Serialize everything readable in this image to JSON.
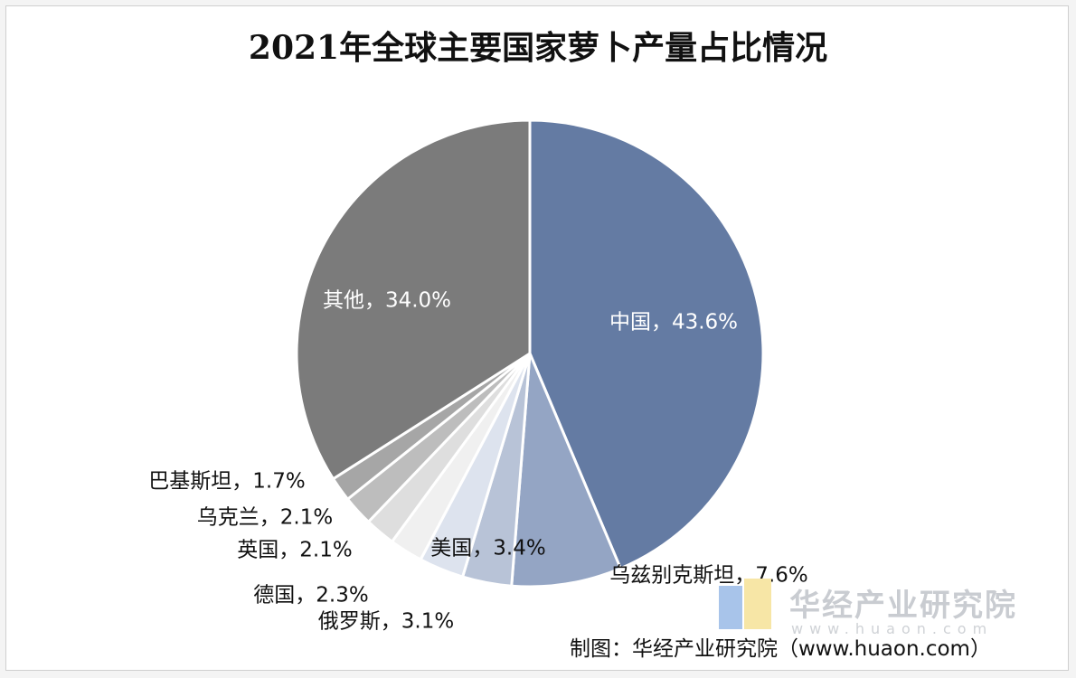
{
  "chart_data": {
    "type": "pie",
    "title": "2021年全球主要国家萝卜产量占比情况",
    "slices": [
      {
        "label": "中国，43.6%",
        "value": 43.6,
        "color": "#647ba3"
      },
      {
        "label": "乌兹别克斯坦，7.6%",
        "value": 7.6,
        "color": "#94a5c4"
      },
      {
        "label": "美国，3.4%",
        "value": 3.4,
        "color": "#b8c3d7"
      },
      {
        "label": "俄罗斯，3.1%",
        "value": 3.1,
        "color": "#dde3ee"
      },
      {
        "label": "德国，2.3%",
        "value": 2.3,
        "color": "#f0f0f0"
      },
      {
        "label": "英国，2.1%",
        "value": 2.1,
        "color": "#dedede"
      },
      {
        "label": "乌克兰，2.1%",
        "value": 2.1,
        "color": "#bdbdbd"
      },
      {
        "label": "巴基斯坦，1.7%",
        "value": 1.7,
        "color": "#a6a6a6"
      },
      {
        "label": "其他，34.0%",
        "value": 34.0,
        "color": "#7b7b7b"
      }
    ]
  },
  "watermark": {
    "name": "华经产业研究院",
    "url": "www.huaon.com"
  },
  "source": "制图：华经产业研究院（www.huaon.com）"
}
